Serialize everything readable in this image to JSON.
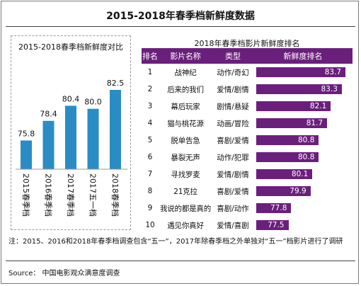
{
  "title": "2015-2018年春季档新鲜度数据",
  "chart_data": [
    {
      "type": "bar",
      "title": "2015-2018春季档新鲜度对比",
      "categories": [
        "2015春季档",
        "2016春季档",
        "2017春季档",
        "2017五一档",
        "2018春季档"
      ],
      "values": [
        75.8,
        78.4,
        80.4,
        80.0,
        82.5
      ],
      "value_labels": [
        "75.8",
        "78.4",
        "80.4",
        "80.0",
        "82.5"
      ],
      "bar_color": "#2a8cc4",
      "xlabel": "",
      "ylabel": "",
      "ylim": [
        72,
        84
      ],
      "grid": false
    },
    {
      "type": "bar",
      "orientation": "horizontal",
      "title": "2018年春季档影片新鲜度排名",
      "columns": [
        "排名",
        "影片名称",
        "类型",
        "新鲜度排名"
      ],
      "rows": [
        {
          "rank": "1",
          "name": "战神纪",
          "genre": "动作/奇幻",
          "score": 83.7,
          "label": "83.7"
        },
        {
          "rank": "2",
          "name": "后来的我们",
          "genre": "爱情/剧情",
          "score": 83.3,
          "label": "83.3"
        },
        {
          "rank": "3",
          "name": "幕后玩家",
          "genre": "剧情/悬疑",
          "score": 82.1,
          "label": "82.1"
        },
        {
          "rank": "4",
          "name": "猫与桃花源",
          "genre": "动画/冒险",
          "score": 81.7,
          "label": "81.7"
        },
        {
          "rank": "5",
          "name": "脱单告急",
          "genre": "喜剧/爱情",
          "score": 80.8,
          "label": "80.8"
        },
        {
          "rank": "6",
          "name": "暴裂无声",
          "genre": "动作/犯罪",
          "score": 80.8,
          "label": "80.8"
        },
        {
          "rank": "7",
          "name": "寻找罗麦",
          "genre": "爱情/剧情",
          "score": 80.1,
          "label": "80.1"
        },
        {
          "rank": "8",
          "name": "21克拉",
          "genre": "喜剧/爱情",
          "score": 79.9,
          "label": "79.9"
        },
        {
          "rank": "9",
          "name": "我说的都是真的",
          "genre": "喜剧/动作",
          "score": 77.8,
          "label": "77.8"
        },
        {
          "rank": "10",
          "name": "遇见你真好",
          "genre": "爱情/喜剧",
          "score": 77.5,
          "label": "77.5"
        }
      ],
      "bar_color": "#6b1f7c",
      "xlim": [
        74,
        84
      ]
    }
  ],
  "note": "注：2015、2016和2018年春季档调查包含“五一”，2017年除春季档之外单独对“五一”档影片进行了调研",
  "source": "Source： 中国电影观众满意度调查"
}
